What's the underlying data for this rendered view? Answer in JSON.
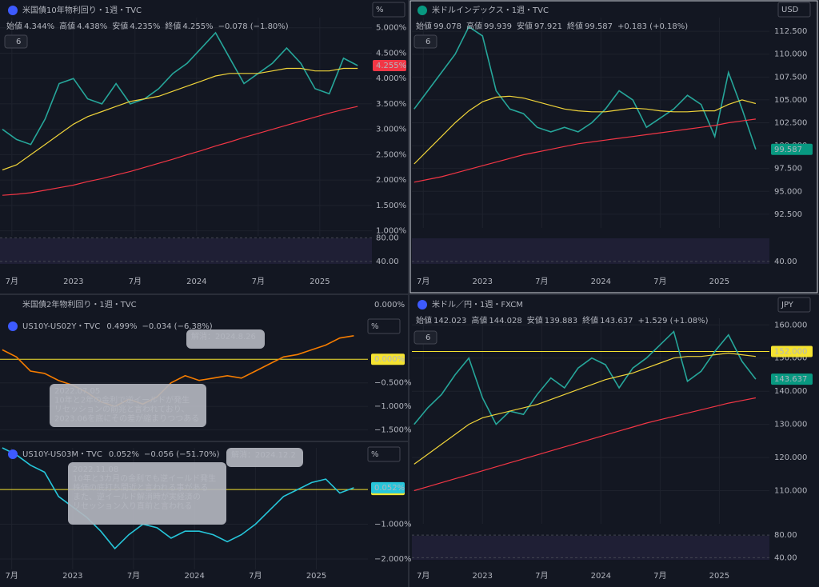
{
  "chart_data": [
    {
      "type": "line",
      "title": "米国債10年物利回り・1週・TVC",
      "ohlc": [
        {
          "label": "始値",
          "value": "4.344%"
        },
        {
          "label": "高値",
          "value": "4.438%"
        },
        {
          "label": "安値",
          "value": "4.235%"
        },
        {
          "label": "終値",
          "value": "4.255%"
        }
      ],
      "change": "−0.078 (−1.80%)",
      "price_tag": "4.255%",
      "tag_color": "#f23645",
      "scale_button": "%",
      "legend_count": 6,
      "x": [
        4,
        10,
        16,
        22,
        28,
        34,
        40,
        46,
        52,
        58,
        64,
        70,
        76,
        82,
        88,
        94,
        100,
        106,
        112,
        118,
        124,
        130,
        136,
        142,
        148,
        154
      ],
      "series": [
        {
          "color": "#26a69a",
          "values": [
            3.0,
            2.8,
            2.7,
            3.2,
            3.9,
            4.0,
            3.6,
            3.5,
            3.9,
            3.5,
            3.6,
            3.8,
            4.1,
            4.3,
            4.6,
            4.9,
            4.4,
            3.9,
            4.1,
            4.3,
            4.6,
            4.3,
            3.8,
            3.7,
            4.4,
            4.255
          ]
        },
        {
          "color": "#f23645",
          "values": [
            1.7,
            1.72,
            1.75,
            1.8,
            1.85,
            1.9,
            1.97,
            2.03,
            2.1,
            2.17,
            2.25,
            2.33,
            2.41,
            2.5,
            2.58,
            2.67,
            2.75,
            2.84,
            2.92,
            3.0,
            3.08,
            3.16,
            3.24,
            3.32,
            3.39,
            3.45
          ]
        },
        {
          "color": "#f0d43a",
          "values": [
            2.2,
            2.3,
            2.5,
            2.7,
            2.9,
            3.1,
            3.25,
            3.35,
            3.45,
            3.55,
            3.6,
            3.65,
            3.75,
            3.85,
            3.95,
            4.05,
            4.1,
            4.1,
            4.1,
            4.15,
            4.2,
            4.2,
            4.15,
            4.15,
            4.2,
            4.2
          ]
        }
      ],
      "xlim": [
        3,
        160
      ],
      "ylim": [
        0.9,
        5.2
      ],
      "yticks": [
        {
          "value": 1.0,
          "label": "1.000%"
        },
        {
          "value": 1.5,
          "label": "1.500%"
        },
        {
          "value": 2.0,
          "label": "2.000%"
        },
        {
          "value": 2.5,
          "label": "2.500%"
        },
        {
          "value": 3.0,
          "label": "3.000%"
        },
        {
          "value": 3.5,
          "label": "3.500%"
        },
        {
          "value": 4.0,
          "label": "4.000%"
        },
        {
          "value": 4.5,
          "label": "4.500%"
        },
        {
          "value": 5.0,
          "label": "5.000%"
        }
      ],
      "xticks": [
        {
          "value": 8,
          "label": "7月"
        },
        {
          "value": 34,
          "label": "2023"
        },
        {
          "value": 60,
          "label": "7月"
        },
        {
          "value": 86,
          "label": "2024"
        },
        {
          "value": 112,
          "label": "7月"
        },
        {
          "value": 138,
          "label": "2025"
        }
      ],
      "rsi_ylim": [
        25,
        90
      ],
      "rsi_ticks": [
        {
          "value": 80,
          "label": "80.00"
        },
        {
          "value": 40,
          "label": "40.00"
        }
      ]
    },
    {
      "type": "line",
      "title": "米ドルインデックス・1週・TVC",
      "ohlc": [
        {
          "label": "始値",
          "value": "99.078"
        },
        {
          "label": "高値",
          "value": "99.939"
        },
        {
          "label": "安値",
          "value": "97.921"
        },
        {
          "label": "終値",
          "value": "99.587"
        }
      ],
      "change": "+0.183 (+0.18%)",
      "price_tag": "99.587",
      "tag_color": "#089981",
      "scale_button": "USD",
      "legend_count": 6,
      "x": [
        4,
        10,
        16,
        22,
        28,
        34,
        40,
        46,
        52,
        58,
        64,
        70,
        76,
        82,
        88,
        94,
        100,
        106,
        112,
        118,
        124,
        130,
        136,
        142,
        148,
        154
      ],
      "series": [
        {
          "color": "#26a69a",
          "values": [
            104,
            106,
            108,
            110,
            113,
            112,
            106,
            104,
            103.5,
            102,
            101.5,
            102,
            101.5,
            102.5,
            104,
            106,
            105,
            102,
            103,
            104,
            105.5,
            104.5,
            101,
            108,
            104,
            99.587
          ]
        },
        {
          "color": "#f23645",
          "values": [
            96,
            96.3,
            96.6,
            97,
            97.4,
            97.8,
            98.2,
            98.6,
            99,
            99.3,
            99.6,
            99.9,
            100.2,
            100.4,
            100.6,
            100.8,
            101,
            101.2,
            101.4,
            101.6,
            101.8,
            102,
            102.2,
            102.5,
            102.7,
            102.9
          ]
        },
        {
          "color": "#f0d43a",
          "values": [
            98,
            99.5,
            101,
            102.5,
            103.8,
            104.8,
            105.3,
            105.4,
            105.2,
            104.8,
            104.4,
            104,
            103.8,
            103.7,
            103.7,
            103.9,
            104.1,
            104,
            103.8,
            103.7,
            103.7,
            103.8,
            103.8,
            104.5,
            105,
            104.6
          ]
        }
      ],
      "xlim": [
        3,
        160
      ],
      "ylim": [
        91,
        114
      ],
      "yticks": [
        {
          "value": 92.5,
          "label": "92.500"
        },
        {
          "value": 95,
          "label": "95.000"
        },
        {
          "value": 97.5,
          "label": "97.500"
        },
        {
          "value": 100,
          "label": "100.000"
        },
        {
          "value": 102.5,
          "label": "102.500"
        },
        {
          "value": 105,
          "label": "105.000"
        },
        {
          "value": 107.5,
          "label": "107.500"
        },
        {
          "value": 110,
          "label": "110.000"
        },
        {
          "value": 112.5,
          "label": "112.500"
        }
      ],
      "xticks": [
        {
          "value": 8,
          "label": "7月"
        },
        {
          "value": 34,
          "label": "2023"
        },
        {
          "value": 60,
          "label": "7月"
        },
        {
          "value": 86,
          "label": "2024"
        },
        {
          "value": 112,
          "label": "7月"
        },
        {
          "value": 138,
          "label": "2025"
        }
      ],
      "rsi_ylim": [
        25,
        90
      ],
      "rsi_ticks": [
        {
          "value": 40,
          "label": "40.00"
        }
      ]
    },
    {
      "type": "line",
      "source_title": "米国債2年物利回り・1週・TVC",
      "source_tick": "0.000%",
      "title": "US10Y-US02Y・TVC",
      "last": "0.499%",
      "change": "−0.034 (−6.38%)",
      "tag_color": "#f57c00",
      "scale_button": "%",
      "x": [
        4,
        10,
        16,
        22,
        28,
        34,
        40,
        46,
        52,
        58,
        64,
        70,
        76,
        82,
        88,
        94,
        100,
        106,
        112,
        118,
        124,
        130,
        136,
        142,
        148,
        154
      ],
      "series": [
        {
          "color": "#f57c00",
          "values": [
            0.2,
            0.05,
            -0.25,
            -0.3,
            -0.45,
            -0.55,
            -0.7,
            -0.9,
            -1.0,
            -0.85,
            -0.95,
            -0.8,
            -0.5,
            -0.35,
            -0.45,
            -0.4,
            -0.35,
            -0.4,
            -0.25,
            -0.1,
            0.05,
            0.1,
            0.2,
            0.3,
            0.45,
            0.499
          ]
        }
      ],
      "xlim": [
        3,
        160
      ],
      "ylim": [
        -1.71,
        0.92
      ],
      "yticks": [
        {
          "value": -0.5,
          "label": "−0.500%"
        },
        {
          "value": -1.0,
          "label": "−1.000%"
        },
        {
          "value": -1.5,
          "label": "−1.500%"
        }
      ],
      "hlines": [
        {
          "value": 0,
          "label": "0.000%",
          "color": "#f5e330"
        }
      ],
      "annotations": [
        {
          "lines": [
            "解消：2024.8.26"
          ]
        },
        {
          "lines": [
            "2022.07.05",
            "10年と2年の金利で逆イールドが発生",
            "リセッションの前兆と言われており、",
            "2023.06を底にその差が縮まりつつある"
          ]
        }
      ]
    },
    {
      "type": "line",
      "title": "US10Y-US03M・TVC",
      "last": "0.052%",
      "change": "−0.056 (−51.70%)",
      "price_tag": "0.052%",
      "tag_color": "#26c6da",
      "scale_button": "%",
      "x": [
        4,
        10,
        16,
        22,
        28,
        34,
        40,
        46,
        52,
        58,
        64,
        70,
        76,
        82,
        88,
        94,
        100,
        106,
        112,
        118,
        124,
        130,
        136,
        142,
        148,
        154
      ],
      "series": [
        {
          "color": "#26c6da",
          "values": [
            1.2,
            1.0,
            0.7,
            0.5,
            -0.2,
            -0.5,
            -0.8,
            -1.2,
            -1.7,
            -1.3,
            -1.0,
            -1.1,
            -1.4,
            -1.2,
            -1.2,
            -1.3,
            -1.5,
            -1.3,
            -1.0,
            -0.6,
            -0.2,
            0.0,
            0.2,
            0.3,
            -0.1,
            0.052
          ]
        }
      ],
      "xlim": [
        3,
        160
      ],
      "ylim": [
        -2.3,
        1.2
      ],
      "yticks": [
        {
          "value": -1.0,
          "label": "−1.000%"
        },
        {
          "value": -2.0,
          "label": "−2.000%"
        }
      ],
      "hlines": [
        {
          "value": 0,
          "label": "0.000%",
          "color": "#f5e330"
        }
      ],
      "xticks": [
        {
          "value": 8,
          "label": "7月"
        },
        {
          "value": 34,
          "label": "2023"
        },
        {
          "value": 60,
          "label": "7月"
        },
        {
          "value": 86,
          "label": "2024"
        },
        {
          "value": 112,
          "label": "7月"
        },
        {
          "value": 138,
          "label": "2025"
        }
      ],
      "annotations": [
        {
          "lines": [
            "解消：2024.12.2"
          ]
        },
        {
          "lines": [
            "2022.11.08",
            "10年と3カ月の金利でも逆イールド発生",
            "株価の底打ち間近と言われる事がある",
            "また、逆イールド解消時が実経済の",
            "リセッション入り直前と言われる"
          ]
        }
      ]
    },
    {
      "type": "line",
      "title": "米ドル／円・1週・FXCM",
      "ohlc": [
        {
          "label": "始値",
          "value": "142.023"
        },
        {
          "label": "高値",
          "value": "144.028"
        },
        {
          "label": "安値",
          "value": "139.883"
        },
        {
          "label": "終値",
          "value": "143.637"
        }
      ],
      "change": "+1.529 (+1.08%)",
      "price_tag": "143.637",
      "tag_color": "#089981",
      "scale_button": "JPY",
      "legend_count": 6,
      "x": [
        4,
        10,
        16,
        22,
        28,
        34,
        40,
        46,
        52,
        58,
        64,
        70,
        76,
        82,
        88,
        94,
        100,
        106,
        112,
        118,
        124,
        130,
        136,
        142,
        148,
        154
      ],
      "series": [
        {
          "color": "#26a69a",
          "values": [
            130,
            135,
            139,
            145,
            150,
            138,
            130,
            134,
            133,
            139,
            144,
            141,
            147,
            150,
            148,
            141,
            147,
            150,
            154,
            158,
            143,
            146,
            152,
            157,
            149,
            143.637
          ]
        },
        {
          "color": "#f23645",
          "values": [
            110,
            111.2,
            112.4,
            113.6,
            114.8,
            116,
            117.2,
            118.4,
            119.6,
            120.8,
            122,
            123.2,
            124.4,
            125.6,
            126.8,
            128,
            129.2,
            130.4,
            131.4,
            132.4,
            133.4,
            134.4,
            135.4,
            136.4,
            137.2,
            138
          ]
        },
        {
          "color": "#f0d43a",
          "values": [
            118,
            121,
            124,
            127,
            130,
            132,
            133,
            134,
            135,
            136,
            137.5,
            139,
            140.5,
            142,
            143.5,
            144.5,
            145.5,
            147,
            148.5,
            150,
            150.5,
            150.5,
            151,
            151.5,
            151,
            150.5
          ]
        }
      ],
      "xlim": [
        3,
        160
      ],
      "ylim": [
        100,
        162
      ],
      "yticks": [
        {
          "value": 110,
          "label": "110.000"
        },
        {
          "value": 120,
          "label": "120.000"
        },
        {
          "value": 130,
          "label": "130.000"
        },
        {
          "value": 140,
          "label": "140.000"
        },
        {
          "value": 150,
          "label": "150.000"
        },
        {
          "value": 160,
          "label": "160.000"
        }
      ],
      "hlines": [
        {
          "value": 152,
          "label": "152.000",
          "color": "#f5e330"
        }
      ],
      "xticks": [
        {
          "value": 8,
          "label": "7月"
        },
        {
          "value": 34,
          "label": "2023"
        },
        {
          "value": 60,
          "label": "7月"
        },
        {
          "value": 86,
          "label": "2024"
        },
        {
          "value": 112,
          "label": "7月"
        },
        {
          "value": 138,
          "label": "2025"
        }
      ],
      "rsi_ylim": [
        25,
        90
      ],
      "rsi_ticks": [
        {
          "value": 80,
          "label": "80.00"
        },
        {
          "value": 40,
          "label": "40.00"
        }
      ]
    }
  ]
}
